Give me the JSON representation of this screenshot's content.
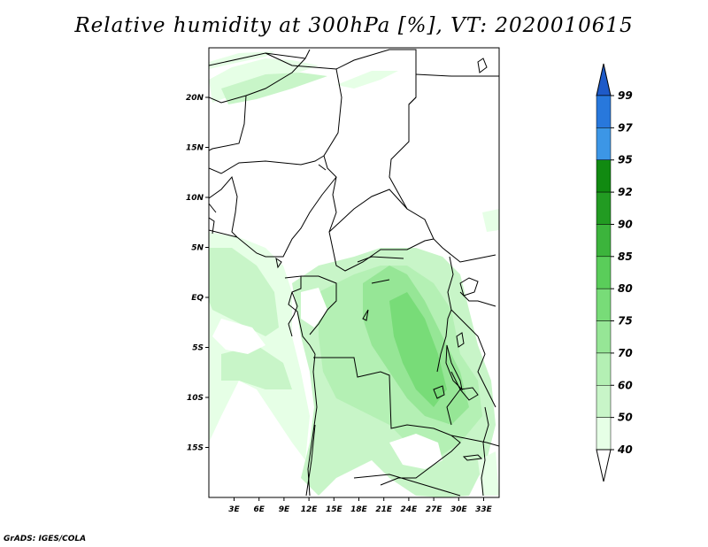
{
  "title": "Relative humidity at 300hPa [%], VT: 2020010615",
  "credit": "GrADS: IGES/COLA",
  "map": {
    "lon_range": [
      0,
      34.5
    ],
    "lat_range": [
      -20,
      25
    ],
    "lat_ticks": [
      "20N",
      "15N",
      "10N",
      "5N",
      "EQ",
      "5S",
      "10S",
      "15S"
    ],
    "lon_ticks": [
      "3E",
      "6E",
      "9E",
      "12E",
      "15E",
      "18E",
      "21E",
      "24E",
      "27E",
      "30E",
      "33E"
    ]
  },
  "colorbar": {
    "levels": [
      "40",
      "50",
      "60",
      "70",
      "75",
      "80",
      "85",
      "90",
      "92",
      "95",
      "97",
      "99"
    ],
    "colors": [
      "#ffffff",
      "#e6ffe6",
      "#c8f5c8",
      "#b4f0b4",
      "#96e696",
      "#78dc78",
      "#5acd5a",
      "#3cb43c",
      "#229b22",
      "#118a11",
      "#3c96e6",
      "#2878dc",
      "#1e5ac8"
    ]
  }
}
